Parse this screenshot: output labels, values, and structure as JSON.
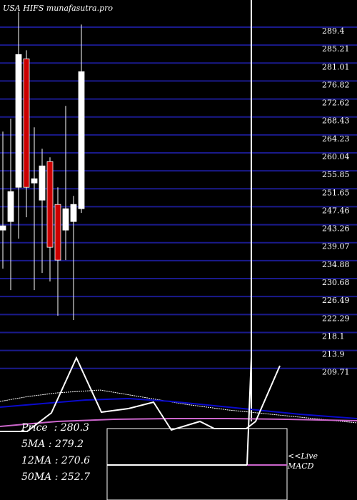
{
  "title": "USA HIFS munafasutra.pro",
  "chart_data": {
    "type": "candlestick",
    "title": "USA HIFS munafasutra.pro",
    "ylim": [
      207.8,
      293.59
    ],
    "y_ticks": [
      "289.4",
      "285.21",
      "281.01",
      "276.82",
      "272.62",
      "268.43",
      "264.23",
      "260.04",
      "255.85",
      "251.65",
      "247.46",
      "243.26",
      "239.07",
      "234.88",
      "230.68",
      "226.49",
      "222.29",
      "218.1",
      "213.9",
      "209.71"
    ],
    "candles": [
      {
        "open": 242.0,
        "close": 243.0,
        "high": 265.0,
        "low": 233.0
      },
      {
        "open": 244.0,
        "close": 251.0,
        "high": 268.0,
        "low": 228.0
      },
      {
        "open": 252.0,
        "close": 283.0,
        "high": 293.0,
        "low": 240.0
      },
      {
        "open": 282.0,
        "close": 252.0,
        "high": 284.0,
        "low": 245.0
      },
      {
        "open": 253.0,
        "close": 254.0,
        "high": 266.0,
        "low": 228.0
      },
      {
        "open": 249.0,
        "close": 257.0,
        "high": 261.0,
        "low": 232.0
      },
      {
        "open": 258.0,
        "close": 238.0,
        "high": 259.0,
        "low": 230.0
      },
      {
        "open": 248.0,
        "close": 235.0,
        "high": 252.0,
        "low": 222.0
      },
      {
        "open": 242.0,
        "close": 247.0,
        "high": 271.0,
        "low": 235.0
      },
      {
        "open": 244.0,
        "close": 248.0,
        "high": 250.0,
        "low": 221.0
      },
      {
        "open": 247.0,
        "close": 279.0,
        "high": 290.0,
        "low": 246.0
      }
    ],
    "stats": [
      {
        "label": "Price",
        "value": "280.3"
      },
      {
        "label": "5MA",
        "value": "279.2"
      },
      {
        "label": "12MA",
        "value": "270.6"
      },
      {
        "label": "50MA",
        "value": "252.7"
      }
    ],
    "macd_label": "<<Live MACD",
    "colors": {
      "up": "#ffffff",
      "down": "#cc0000",
      "grid": "#1a1a8c",
      "ma_blue": "#0a0acc",
      "ma_purple": "#cc66cc"
    }
  }
}
